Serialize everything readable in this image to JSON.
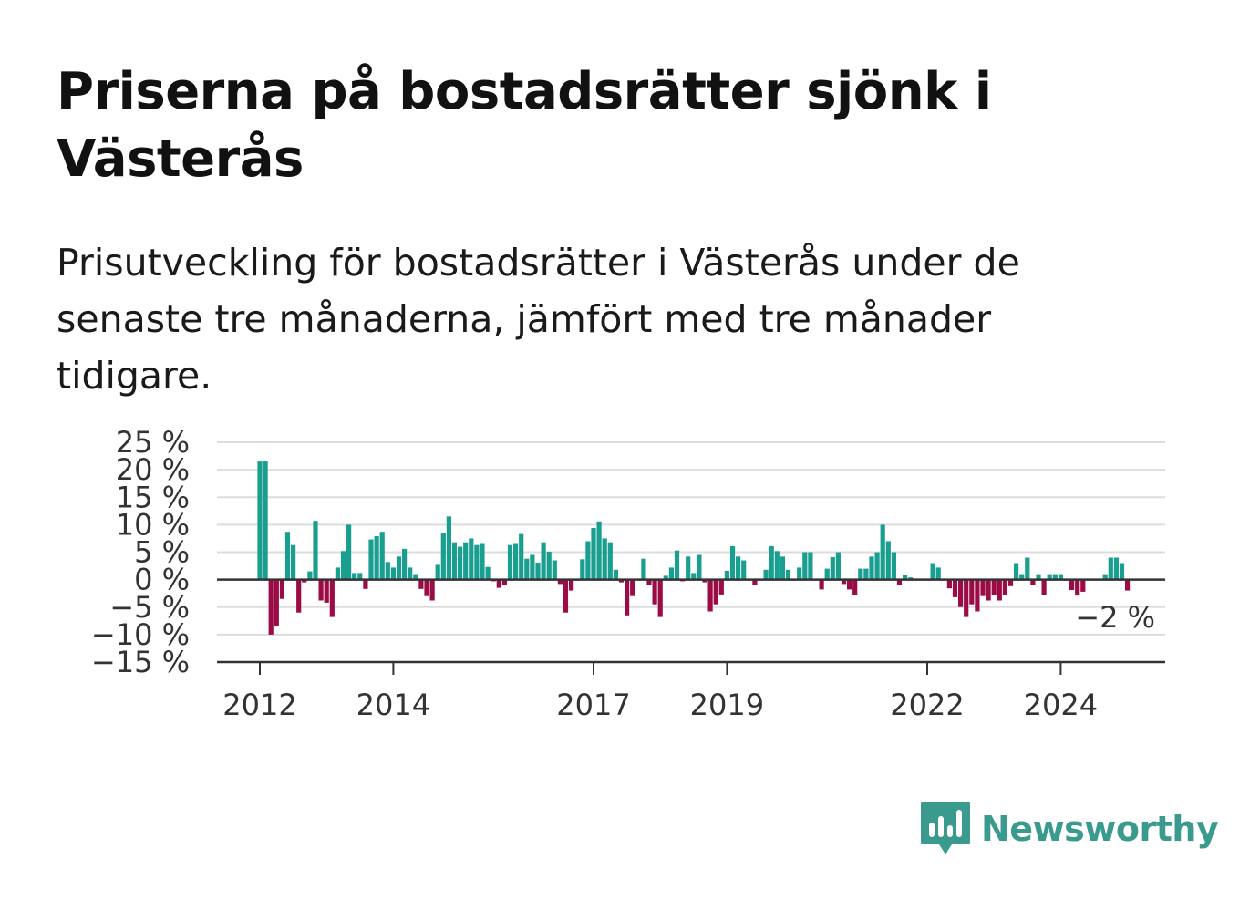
{
  "title": "Priserna på bostadsrätter sjönk i Västerås",
  "subtitle": "Prisutveckling för bostadsrätter i Västerås under de senaste tre månaderna, jämfört med tre månader tidigare.",
  "brand": "Newsworthy",
  "colors": {
    "positive": "#1a9e90",
    "negative": "#9b0b45",
    "grid": "#dddddd",
    "axis": "#333333",
    "brand": "#3a9a8e"
  },
  "chart_data": {
    "type": "bar",
    "start": "2012-01",
    "frequency": "monthly",
    "ylim": [
      -15,
      25
    ],
    "yticks": [
      25,
      20,
      15,
      10,
      5,
      0,
      -5,
      -10,
      -15
    ],
    "ytick_labels": [
      "25 %",
      "20 %",
      "15 %",
      "10 %",
      "5 %",
      "0 %",
      "−5 %",
      "−10 %",
      "−15 %"
    ],
    "xticks": [
      "2012-01",
      "2014-01",
      "2017-01",
      "2019-01",
      "2022-01",
      "2024-01"
    ],
    "xtick_labels": [
      "2012",
      "2014",
      "2017",
      "2019",
      "2022",
      "2024"
    ],
    "last_value_label": "−2 %",
    "grid": true,
    "values": [
      21.5,
      21.5,
      -10,
      -8.5,
      -3.5,
      8.7,
      6.3,
      -6,
      -0.5,
      1.5,
      10.7,
      -3.8,
      -4.2,
      -6.8,
      2.2,
      5.2,
      10,
      1.2,
      1.2,
      -1.7,
      7.3,
      7.9,
      8.7,
      3.2,
      2.2,
      4.2,
      5.6,
      2.2,
      1,
      -1.7,
      -3,
      -3.8,
      2.7,
      8.5,
      11.5,
      6.8,
      6,
      6.8,
      7.5,
      6.3,
      6.5,
      2.3,
      -0.3,
      -1.5,
      -1,
      6.3,
      6.5,
      8.3,
      3.8,
      4.5,
      3.1,
      6.8,
      5.1,
      3.5,
      -0.8,
      -6,
      -2,
      0,
      3.7,
      7,
      9.4,
      10.6,
      7.5,
      6.8,
      1.8,
      -0.5,
      -6.5,
      -3,
      0,
      3.8,
      -1,
      -4.5,
      -6.8,
      0.7,
      2.2,
      5.3,
      -0.3,
      4.2,
      1.2,
      4.5,
      -0.5,
      -5.8,
      -4.5,
      -2.7,
      1.6,
      6.1,
      4.2,
      3.5,
      0,
      -1,
      0,
      1.8,
      6.1,
      5.2,
      4.2,
      1.8,
      0,
      2.2,
      5,
      5,
      0,
      -1.8,
      2,
      4.1,
      5,
      -0.8,
      -1.8,
      -2.8,
      2,
      2,
      4.2,
      5,
      10,
      7,
      5,
      -1,
      0.9,
      0.4,
      0,
      0,
      0,
      3,
      2.2,
      0,
      -1.6,
      -3.2,
      -5,
      -6.8,
      -4.5,
      -5.8,
      -3,
      -3.8,
      -2.8,
      -3.8,
      -2.8,
      -1.2,
      3,
      1,
      4,
      -1,
      1,
      -2.8,
      1,
      1,
      1,
      -0.2,
      -1.9,
      -2.9,
      -2.2,
      0,
      0,
      0,
      1,
      4,
      4,
      3,
      -2
    ]
  }
}
